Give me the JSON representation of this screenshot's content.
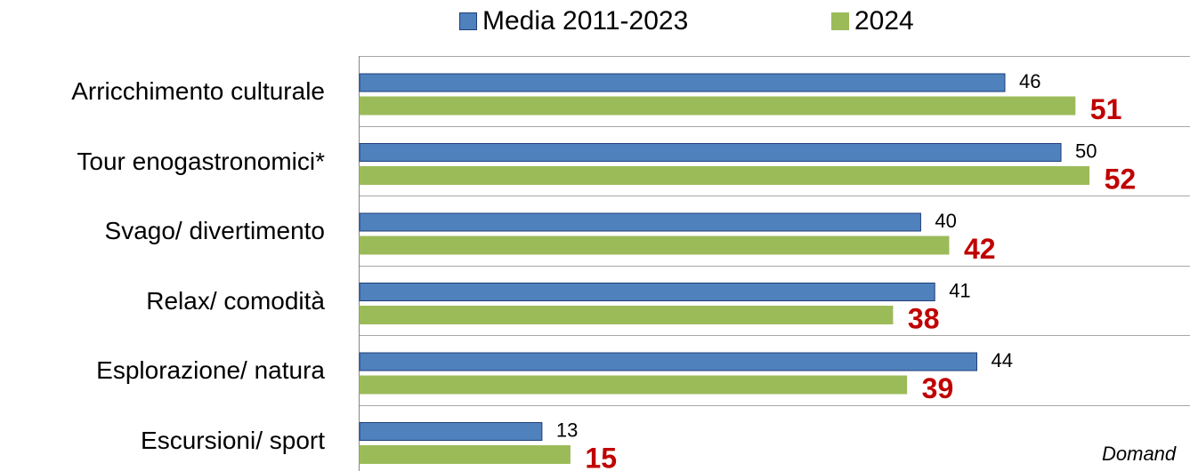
{
  "chart_data": {
    "type": "bar",
    "orientation": "horizontal",
    "categories": [
      "Arricchimento culturale",
      "Tour enogastronomici*",
      "Svago/ divertimento",
      "Relax/ comodità",
      "Esplorazione/ natura",
      "Escursioni/ sport"
    ],
    "series": [
      {
        "name": "Media 2011-2023",
        "values": [
          46,
          50,
          40,
          41,
          44,
          13
        ],
        "color": "#4F81BD",
        "border": "#1F3F7A",
        "label_color": "#000000"
      },
      {
        "name": "2024",
        "values": [
          51,
          52,
          42,
          38,
          39,
          15
        ],
        "color": "#9BBB59",
        "border": "#9BBB59",
        "label_color": "#C00000"
      }
    ],
    "xlim": [
      0,
      70
    ],
    "grid": true,
    "legend_position": "top"
  },
  "footnote": "Domand",
  "colors": {
    "grid": "#A6A6A6",
    "axis": "#868686"
  }
}
